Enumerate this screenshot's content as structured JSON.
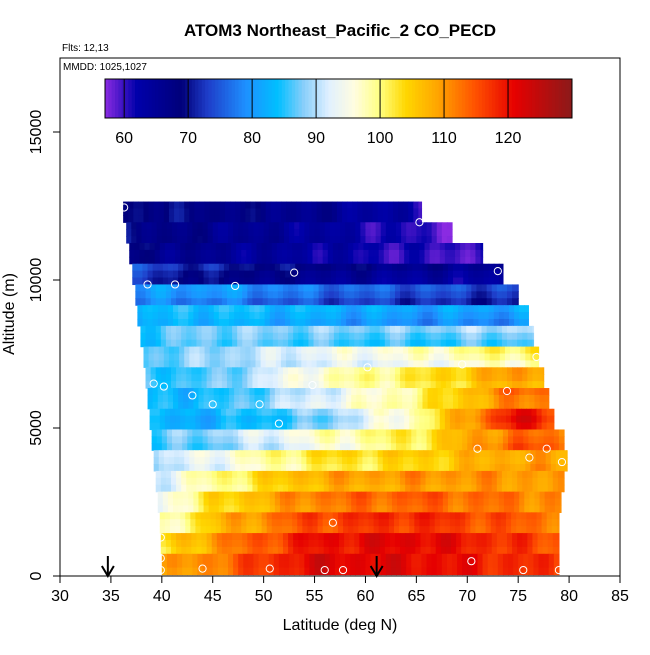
{
  "chart_data": {
    "type": "heatmap",
    "title": "ATOM3 Northeast_Pacific_2 CO_PECD",
    "flights_label": "Flts: 12,13",
    "dates_label": "MMDD: 1025,1027",
    "xlabel": "Latitude (deg N)",
    "ylabel": "Altitude (m)",
    "xlim": [
      30,
      85
    ],
    "ylim": [
      0,
      17500
    ],
    "x_ticks": [
      30,
      35,
      40,
      45,
      50,
      55,
      60,
      65,
      70,
      75,
      80,
      85
    ],
    "y_ticks": [
      0,
      5000,
      10000,
      15000
    ],
    "colorbar": {
      "range": [
        57,
        130
      ],
      "ticks": [
        60,
        70,
        80,
        90,
        100,
        110,
        120
      ],
      "stops": [
        {
          "v": 57,
          "c": "#8a2be2"
        },
        {
          "v": 62,
          "c": "#0000aa"
        },
        {
          "v": 69,
          "c": "#00007a"
        },
        {
          "v": 73,
          "c": "#1e3cc8"
        },
        {
          "v": 79,
          "c": "#1e90ff"
        },
        {
          "v": 84,
          "c": "#00bfff"
        },
        {
          "v": 88,
          "c": "#87cefa"
        },
        {
          "v": 92,
          "c": "#e0f0ff"
        },
        {
          "v": 96,
          "c": "#fffde0"
        },
        {
          "v": 100,
          "c": "#ffff80"
        },
        {
          "v": 104,
          "c": "#ffd700"
        },
        {
          "v": 109,
          "c": "#ffa500"
        },
        {
          "v": 115,
          "c": "#ff5000"
        },
        {
          "v": 121,
          "c": "#e60000"
        },
        {
          "v": 130,
          "c": "#8b1a1a"
        }
      ]
    },
    "field": {
      "altitudes_m": [
        12300,
        11600,
        10900,
        10200,
        9500,
        8800,
        8100,
        7400,
        6700,
        6000,
        5300,
        4600,
        3900,
        3200,
        2500,
        1800,
        1100,
        400
      ],
      "min_lat": [
        36.2,
        36.5,
        36.8,
        37.1,
        37.4,
        37.6,
        37.9,
        38.2,
        38.4,
        38.6,
        38.8,
        39.0,
        39.2,
        39.4,
        39.6,
        39.8,
        39.9,
        40.0
      ],
      "max_lat": [
        65.5,
        68.5,
        71.5,
        73.5,
        75.0,
        76.0,
        76.5,
        77.0,
        77.5,
        78.0,
        78.5,
        79.5,
        79.8,
        79.5,
        79.2,
        79.0,
        79.0,
        79.0
      ]
    },
    "field_anchors": [
      {
        "lat": 35,
        "v": [
          70,
          69,
          68,
          74,
          79,
          82,
          84,
          86,
          85,
          83,
          82,
          84,
          86,
          86,
          86,
          85,
          95,
          104
        ]
      },
      {
        "lat": 45,
        "v": [
          68,
          66,
          65,
          69,
          80,
          84,
          88,
          89,
          86,
          84,
          82,
          88,
          94,
          99,
          103,
          106,
          110,
          112
        ]
      },
      {
        "lat": 55,
        "v": [
          66,
          64,
          63,
          66,
          76,
          82,
          87,
          93,
          97,
          92,
          86,
          96,
          102,
          108,
          112,
          116,
          120,
          122
        ]
      },
      {
        "lat": 65,
        "v": [
          62,
          60,
          60,
          64,
          74,
          80,
          86,
          96,
          102,
          100,
          98,
          102,
          104,
          110,
          114,
          118,
          122,
          121
        ]
      },
      {
        "lat": 75,
        "v": [
          58,
          58,
          60,
          64,
          72,
          80,
          88,
          100,
          110,
          112,
          122,
          114,
          109,
          110,
          112,
          114,
          117,
          118
        ]
      },
      {
        "lat": 80,
        "v": [
          58,
          58,
          60,
          64,
          72,
          80,
          90,
          102,
          110,
          112,
          116,
          112,
          108,
          108,
          110,
          112,
          114,
          116
        ]
      }
    ],
    "sample_points": [
      {
        "lat": 36.3,
        "alt": 12450
      },
      {
        "lat": 65.3,
        "alt": 11950
      },
      {
        "lat": 73.0,
        "alt": 10300
      },
      {
        "lat": 38.6,
        "alt": 9850
      },
      {
        "lat": 41.3,
        "alt": 9850
      },
      {
        "lat": 47.2,
        "alt": 9800
      },
      {
        "lat": 53.0,
        "alt": 10250
      },
      {
        "lat": 37.3,
        "alt": 7150
      },
      {
        "lat": 60.2,
        "alt": 7050
      },
      {
        "lat": 69.5,
        "alt": 7150
      },
      {
        "lat": 76.8,
        "alt": 7400
      },
      {
        "lat": 39.2,
        "alt": 6500
      },
      {
        "lat": 40.2,
        "alt": 6400
      },
      {
        "lat": 43.0,
        "alt": 6100
      },
      {
        "lat": 45.0,
        "alt": 5800
      },
      {
        "lat": 49.6,
        "alt": 5800
      },
      {
        "lat": 54.8,
        "alt": 6450
      },
      {
        "lat": 73.9,
        "alt": 6250
      },
      {
        "lat": 51.5,
        "alt": 5150
      },
      {
        "lat": 38.5,
        "alt": 4600
      },
      {
        "lat": 71.0,
        "alt": 4300
      },
      {
        "lat": 76.1,
        "alt": 4000
      },
      {
        "lat": 77.8,
        "alt": 4300
      },
      {
        "lat": 79.3,
        "alt": 3850
      },
      {
        "lat": 56.8,
        "alt": 1800
      },
      {
        "lat": 39.9,
        "alt": 1300
      },
      {
        "lat": 39.9,
        "alt": 600
      },
      {
        "lat": 39.9,
        "alt": 200
      },
      {
        "lat": 44.0,
        "alt": 250
      },
      {
        "lat": 50.6,
        "alt": 250
      },
      {
        "lat": 56.0,
        "alt": 200
      },
      {
        "lat": 57.8,
        "alt": 200
      },
      {
        "lat": 70.4,
        "alt": 500
      },
      {
        "lat": 75.5,
        "alt": 200
      },
      {
        "lat": 79.0,
        "alt": 200
      }
    ],
    "arrows": [
      {
        "lat": 34.7
      },
      {
        "lat": 61.1
      }
    ]
  }
}
